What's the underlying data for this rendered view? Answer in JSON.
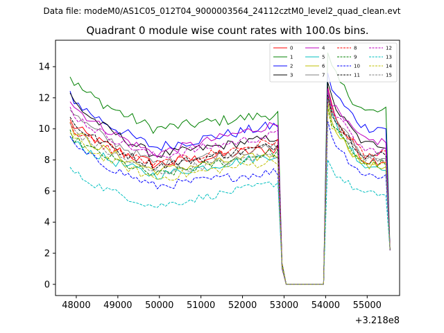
{
  "header": {
    "data_file": "Data file: modeM0/AS1C05_012T04_9000003564_24112cztM0_level2_quad_clean.evt"
  },
  "chart_data": {
    "type": "line",
    "title": "Quadrant 0 module wise count rates with 100.0s bins.",
    "xlabel": "",
    "ylabel": "",
    "offset_label": "+3.218e8",
    "xlim": [
      47500,
      55780
    ],
    "ylim": [
      -0.72,
      15.7
    ],
    "xticks": [
      48000,
      49000,
      50000,
      51000,
      52000,
      53000,
      54000,
      55000
    ],
    "yticks": [
      0,
      2,
      4,
      6,
      8,
      10,
      12,
      14
    ],
    "legend_position": "top-right",
    "series": [
      {
        "name": "0",
        "color": "#ff0000",
        "style": "solid",
        "start": 10.5,
        "trough": 7.7,
        "preEnd": 8.8,
        "post": 12.7,
        "end": 8.0,
        "noise": 0.35
      },
      {
        "name": "1",
        "color": "#008000",
        "style": "solid",
        "start": 13.4,
        "trough": 10.0,
        "preEnd": 11.0,
        "post": 14.9,
        "end": 11.1,
        "noise": 0.35
      },
      {
        "name": "2",
        "color": "#0000ff",
        "style": "solid",
        "start": 12.3,
        "trough": 8.8,
        "preEnd": 10.3,
        "post": 13.6,
        "end": 10.1,
        "noise": 0.35
      },
      {
        "name": "3",
        "color": "#000000",
        "style": "solid",
        "start": 12.2,
        "trough": 8.3,
        "preEnd": 9.5,
        "post": 13.0,
        "end": 9.0,
        "noise": 0.3
      },
      {
        "name": "4",
        "color": "#bf00bf",
        "style": "solid",
        "start": 11.9,
        "trough": 8.4,
        "preEnd": 10.4,
        "post": 12.6,
        "end": 9.2,
        "noise": 0.3
      },
      {
        "name": "5",
        "color": "#00bfbf",
        "style": "solid",
        "start": 9.4,
        "trough": 7.0,
        "preEnd": 8.4,
        "post": 12.1,
        "end": 7.6,
        "noise": 0.3
      },
      {
        "name": "6",
        "color": "#bfbf00",
        "style": "solid",
        "start": 10.2,
        "trough": 7.3,
        "preEnd": 8.4,
        "post": 11.7,
        "end": 7.6,
        "noise": 0.3
      },
      {
        "name": "7",
        "color": "#808080",
        "style": "solid",
        "start": 11.4,
        "trough": 7.8,
        "preEnd": 8.9,
        "post": 12.4,
        "end": 8.2,
        "noise": 0.3
      },
      {
        "name": "8",
        "color": "#ff0000",
        "style": "dashed",
        "start": 10.2,
        "trough": 7.7,
        "preEnd": 9.3,
        "post": 12.1,
        "end": 8.3,
        "noise": 0.3
      },
      {
        "name": "9",
        "color": "#008000",
        "style": "dashed",
        "start": 9.7,
        "trough": 7.0,
        "preEnd": 8.6,
        "post": 11.4,
        "end": 7.8,
        "noise": 0.3
      },
      {
        "name": "10",
        "color": "#0000ff",
        "style": "dashed",
        "start": 9.3,
        "trough": 6.3,
        "preEnd": 7.3,
        "post": 10.5,
        "end": 7.0,
        "noise": 0.3
      },
      {
        "name": "11",
        "color": "#000000",
        "style": "dashed",
        "start": 10.7,
        "trough": 7.6,
        "preEnd": 9.0,
        "post": 12.2,
        "end": 8.3,
        "noise": 0.3
      },
      {
        "name": "12",
        "color": "#bf00bf",
        "style": "dashed",
        "start": 11.3,
        "trough": 8.2,
        "preEnd": 9.7,
        "post": 12.6,
        "end": 8.6,
        "noise": 0.3
      },
      {
        "name": "13",
        "color": "#00bfbf",
        "style": "dashed",
        "start": 7.5,
        "trough": 5.0,
        "preEnd": 6.6,
        "post": 8.0,
        "end": 5.8,
        "noise": 0.25
      },
      {
        "name": "14",
        "color": "#bfbf00",
        "style": "dashed",
        "start": 9.7,
        "trough": 6.8,
        "preEnd": 8.0,
        "post": 11.3,
        "end": 7.7,
        "noise": 0.3
      },
      {
        "name": "15",
        "color": "#808080",
        "style": "dashed",
        "start": 10.3,
        "trough": 7.2,
        "preEnd": 8.4,
        "post": 11.9,
        "end": 8.2,
        "noise": 0.3
      }
    ],
    "time_structure": {
      "x_start": 47850,
      "x_end": 55550,
      "bin": 100,
      "trough_at": 49900,
      "gap_start": 52950,
      "gap_end": 53950,
      "peak_at": 54050,
      "fall_at": 54950,
      "last_value": 2.2
    }
  }
}
